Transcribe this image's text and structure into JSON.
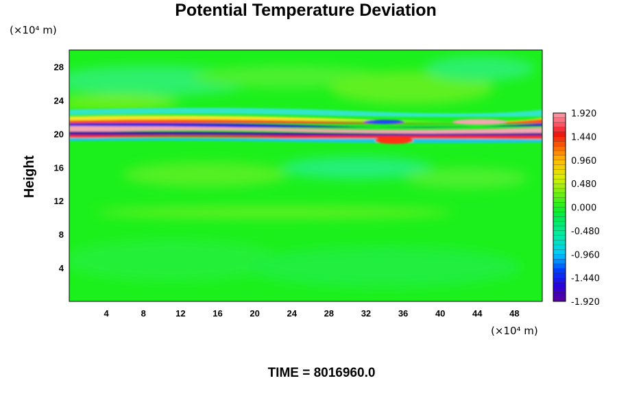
{
  "chart_data": {
    "type": "heatmap",
    "title": "Potential Temperature Deviation",
    "ylabel": "Height",
    "x_unit": "(×10⁴ m)",
    "y_unit": "(×10⁴ m)",
    "xlim": [
      0,
      51
    ],
    "ylim": [
      0,
      30
    ],
    "x_ticks": [
      4,
      8,
      12,
      16,
      20,
      24,
      28,
      32,
      36,
      40,
      44,
      48
    ],
    "y_ticks": [
      4,
      8,
      12,
      16,
      20,
      24,
      28
    ],
    "colorbar": {
      "range": [
        -1.92,
        1.92
      ],
      "tick_values": [
        1.92,
        1.44,
        0.96,
        0.48,
        0.0,
        -0.48,
        -0.96,
        -1.44,
        -1.92
      ],
      "tick_labels": [
        "1.920",
        "1.440",
        "0.960",
        "0.480",
        "0.000",
        "-0.480",
        "-0.960",
        "-1.440",
        "-1.920"
      ]
    },
    "field_summary": {
      "background_value": 0.0,
      "strong_layer_height": [
        19,
        22
      ],
      "strong_layer_value_range": [
        -1.92,
        1.92
      ]
    },
    "annotation": "TIME = 8016960.0"
  }
}
